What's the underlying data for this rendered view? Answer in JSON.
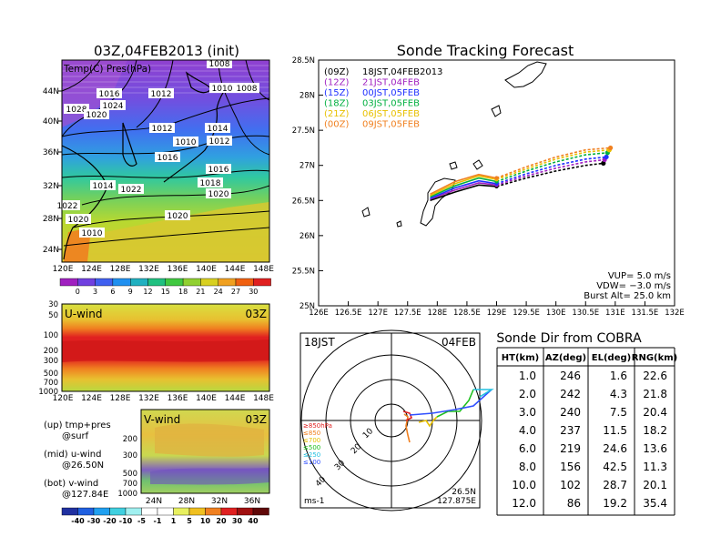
{
  "sfc_panel": {
    "title": "03Z,04FEB2013 (init)",
    "subtitle": "Temp(C) Pres(hPa)",
    "lon_ticks": [
      "120E",
      "124E",
      "128E",
      "132E",
      "136E",
      "140E",
      "144E",
      "148E"
    ],
    "lat_ticks": [
      "44N",
      "40N",
      "36N",
      "32N",
      "28N",
      "24N"
    ],
    "isobar_labels": [
      "1008",
      "1016",
      "1012",
      "1010",
      "1008",
      "1028",
      "1024",
      "1020",
      "1010",
      "1012",
      "1010",
      "1014",
      "1012",
      "1016",
      "1016",
      "1018",
      "1014",
      "1020",
      "1022",
      "1020",
      "1022",
      "1020"
    ],
    "colorbar_ticks": [
      "0",
      "3",
      "6",
      "9",
      "12",
      "15",
      "18",
      "21",
      "24",
      "27",
      "30"
    ]
  },
  "uwind_panel": {
    "title": "U-wind",
    "time": "03Z",
    "y_ticks": [
      "30",
      "50",
      "100",
      "200",
      "300",
      "500",
      "700",
      "1000"
    ],
    "lon_ticks": [
      "120E",
      "124E",
      "128E",
      "132E",
      "136E",
      "140E",
      "144E",
      "148E"
    ]
  },
  "vwind_panel": {
    "title": "V-wind",
    "time": "03Z",
    "y_ticks": [
      "200",
      "300",
      "500",
      "700",
      "1000"
    ],
    "lat_ticks": [
      "24N",
      "28N",
      "32N",
      "36N"
    ],
    "colorbar_ticks": [
      "-40",
      "-30",
      "-20",
      "-10",
      "-5",
      "-1",
      "1",
      "5",
      "10",
      "20",
      "30",
      "40"
    ]
  },
  "legend_notes": [
    {
      "line1": "(up) tmp+pres",
      "line2": "@surf"
    },
    {
      "line1": "(mid) u-wind",
      "line2": "@26.50N"
    },
    {
      "line1": "(bot) v-wind",
      "line2": "@127.84E"
    }
  ],
  "track_panel": {
    "title": "Sonde Tracking Forecast",
    "lat_ticks": [
      "28.5N",
      "28N",
      "27.5N",
      "27N",
      "26.5N",
      "26N",
      "25.5N",
      "25N"
    ],
    "lon_ticks": [
      "126E",
      "126.5E",
      "127E",
      "127.5E",
      "128E",
      "128.5E",
      "129E",
      "129.5E",
      "130E",
      "130.5E",
      "131E",
      "131.5E",
      "132E"
    ],
    "launches": [
      {
        "code": "(09Z)",
        "label": "18JST,04FEB2013",
        "color": "#000000"
      },
      {
        "code": "(12Z)",
        "label": "21JST,04FEB",
        "color": "#a020c0"
      },
      {
        "code": "(15Z)",
        "label": "00JST,05FEB",
        "color": "#2030ff"
      },
      {
        "code": "(18Z)",
        "label": "03JST,05FEB",
        "color": "#00b040"
      },
      {
        "code": "(21Z)",
        "label": "06JST,05FEB",
        "color": "#e8c000"
      },
      {
        "code": "(00Z)",
        "label": "09JST,05FEB",
        "color": "#f08020"
      }
    ],
    "vup": "VUP=  5.0  m/s",
    "vdw": "VDW= −3.0  m/s",
    "burst": "Burst Alt= 25.0  km"
  },
  "polar_panel": {
    "time": "18JST",
    "date": "04FEB",
    "unit": "ms-1",
    "location_lat": "26.5N",
    "location_lon": "127.875E",
    "ring_labels": [
      "10",
      "20",
      "30",
      "40"
    ],
    "levels": [
      {
        "label": "≥850hPa",
        "color": "#e02020"
      },
      {
        "label": "≤850",
        "color": "#f08020"
      },
      {
        "label": "≤700",
        "color": "#e8c000"
      },
      {
        "label": "≤500",
        "color": "#20c020"
      },
      {
        "label": "≤250",
        "color": "#20c0e0"
      },
      {
        "label": "≤100",
        "color": "#3050ff"
      }
    ]
  },
  "table": {
    "title": "Sonde Dir from COBRA",
    "headers": [
      "HT(km)",
      "AZ(deg)",
      "EL(deg)",
      "RNG(km)"
    ],
    "rows": [
      [
        "1.0",
        "246",
        "1.6",
        "22.6"
      ],
      [
        "2.0",
        "242",
        "4.3",
        "21.8"
      ],
      [
        "3.0",
        "240",
        "7.5",
        "20.4"
      ],
      [
        "4.0",
        "237",
        "11.5",
        "18.2"
      ],
      [
        "6.0",
        "219",
        "24.6",
        "13.6"
      ],
      [
        "8.0",
        "156",
        "42.5",
        "11.3"
      ],
      [
        "10.0",
        "102",
        "28.7",
        "20.1"
      ],
      [
        "12.0",
        "86",
        "19.2",
        "35.4"
      ]
    ]
  },
  "chart_data": [
    {
      "type": "heatmap",
      "title": "03Z,04FEB2013 (init)",
      "subtitle": "Temp(C) Pres(hPa)",
      "x_range": [
        "120E",
        "149E"
      ],
      "y_range": [
        "21N",
        "47N"
      ],
      "colorbar": [
        0,
        3,
        6,
        9,
        12,
        15,
        18,
        21,
        24,
        27,
        30
      ]
    },
    {
      "type": "heatmap",
      "title": "U-wind",
      "x_range": [
        "120E",
        "149E"
      ],
      "y_levels_hPa": [
        30,
        50,
        100,
        200,
        300,
        500,
        700,
        1000
      ],
      "note": "strong westerlies peaking near 200-300 hPa"
    },
    {
      "type": "heatmap",
      "title": "V-wind",
      "x_range": [
        "21N",
        "39N"
      ],
      "y_levels_hPa": [
        200,
        300,
        500,
        700,
        1000
      ],
      "colorbar": [
        -40,
        -30,
        -20,
        -10,
        -5,
        -1,
        1,
        5,
        10,
        20,
        30,
        40
      ]
    },
    {
      "type": "line",
      "title": "Sonde Tracking Forecast",
      "xlim": [
        126,
        132
      ],
      "ylim": [
        25,
        28.5
      ],
      "series": [
        {
          "name": "(09Z) 18JST,04FEB2013",
          "x": [
            127.88,
            128.3,
            128.7,
            129.0,
            129.5,
            130.0,
            130.5,
            130.8
          ],
          "y": [
            26.5,
            26.62,
            26.72,
            26.7,
            26.82,
            26.92,
            27.0,
            27.03
          ]
        },
        {
          "name": "(12Z) 21JST,04FEB",
          "x": [
            127.88,
            128.3,
            128.7,
            129.0,
            129.5,
            130.0,
            130.5,
            130.82
          ],
          "y": [
            26.52,
            26.65,
            26.75,
            26.72,
            26.85,
            26.96,
            27.05,
            27.08
          ]
        },
        {
          "name": "(15Z) 00JST,05FEB",
          "x": [
            127.88,
            128.3,
            128.7,
            129.0,
            129.5,
            130.0,
            130.5,
            130.85
          ],
          "y": [
            26.53,
            26.68,
            26.78,
            26.74,
            26.88,
            27.0,
            27.09,
            27.12
          ]
        },
        {
          "name": "(18Z) 03JST,05FEB",
          "x": [
            127.88,
            128.3,
            128.7,
            129.0,
            129.5,
            130.0,
            130.5,
            130.87
          ],
          "y": [
            26.55,
            26.71,
            26.82,
            26.77,
            26.92,
            27.05,
            27.15,
            27.18
          ]
        },
        {
          "name": "(21Z) 06JST,05FEB",
          "x": [
            127.88,
            128.3,
            128.7,
            129.0,
            129.5,
            130.0,
            130.5,
            130.9
          ],
          "y": [
            26.57,
            26.74,
            26.85,
            26.8,
            26.95,
            27.09,
            27.19,
            27.22
          ]
        },
        {
          "name": "(00Z) 09JST,05FEB",
          "x": [
            127.88,
            128.3,
            128.7,
            129.0,
            129.5,
            130.0,
            130.5,
            130.92
          ],
          "y": [
            26.59,
            26.77,
            26.87,
            26.82,
            26.98,
            27.12,
            27.22,
            27.25
          ]
        }
      ]
    },
    {
      "type": "line",
      "title": "hodograph 18JST 04FEB",
      "unit": "ms-1",
      "rings": [
        10,
        20,
        30,
        40
      ],
      "note": "wind hodograph by pressure level, red near surface to blue at upper levels"
    },
    {
      "type": "table",
      "title": "Sonde Dir from COBRA",
      "columns": [
        "HT(km)",
        "AZ(deg)",
        "EL(deg)",
        "RNG(km)"
      ],
      "rows": [
        [
          1.0,
          246,
          1.6,
          22.6
        ],
        [
          2.0,
          242,
          4.3,
          21.8
        ],
        [
          3.0,
          240,
          7.5,
          20.4
        ],
        [
          4.0,
          237,
          11.5,
          18.2
        ],
        [
          6.0,
          219,
          24.6,
          13.6
        ],
        [
          8.0,
          156,
          42.5,
          11.3
        ],
        [
          10.0,
          102,
          28.7,
          20.1
        ],
        [
          12.0,
          86,
          19.2,
          35.4
        ]
      ]
    }
  ]
}
